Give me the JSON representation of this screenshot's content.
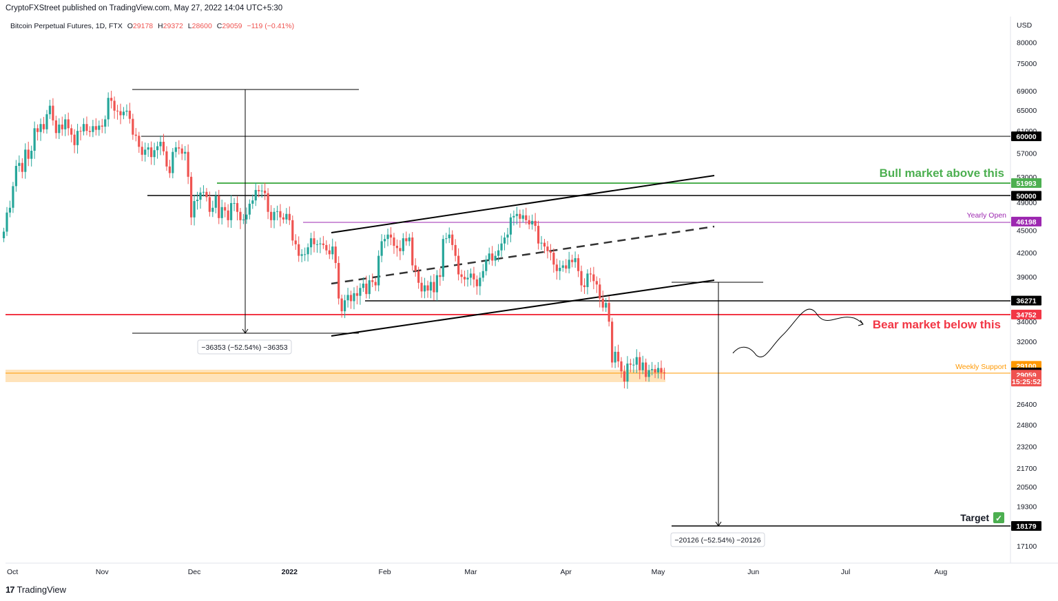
{
  "header": {
    "published_by": "CryptoFXStreet published on TradingView.com, May 27, 2022 14:04 UTC+5:30",
    "symbol_line": "Bitcoin Perpetual Futures, 1D, FTX",
    "ohlc": {
      "o_label": "O",
      "o": "29178",
      "h_label": "H",
      "h": "29372",
      "l_label": "L",
      "l": "28600",
      "c_label": "C",
      "c": "29059",
      "change": "−119 (−0.41%)"
    }
  },
  "footer": {
    "brand": "TradingView",
    "logo_text": "17"
  },
  "colors": {
    "up": "#26a69a",
    "down": "#ef5350",
    "bull_line": "#4caf50",
    "bear_line": "#f23645",
    "yearly_open": "#9c27b0",
    "weekly_support": "#ff9800",
    "support_band": "#ffe0b2",
    "black": "#000000"
  },
  "chart_data": {
    "type": "candlestick",
    "title": "Bitcoin Perpetual Futures, 1D, FTX",
    "y_axis": {
      "unit": "USD",
      "scale": "log",
      "ticks": [
        80000,
        75000,
        69000,
        65000,
        61000,
        57000,
        53000,
        49000,
        45000,
        42000,
        39000,
        34000,
        32000,
        26400,
        24800,
        23200,
        21700,
        20500,
        19300,
        17100
      ]
    },
    "x_axis": {
      "tick_labels": [
        "Oct",
        "Nov",
        "Dec",
        "2022",
        "Feb",
        "Mar",
        "Apr",
        "May",
        "Jun",
        "Jul",
        "Aug"
      ]
    },
    "closes": [
      44800,
      47500,
      48200,
      51500,
      54800,
      55300,
      53800,
      57600,
      56000,
      57400,
      61500,
      60800,
      62300,
      61300,
      64200,
      65900,
      63000,
      60600,
      62200,
      61300,
      63200,
      61500,
      60300,
      58400,
      61000,
      60900,
      62300,
      61000,
      60800,
      61900,
      61200,
      62000,
      61800,
      63200,
      67500,
      66900,
      64900,
      64800,
      64000,
      64700,
      64900,
      63300,
      60300,
      60100,
      58100,
      56700,
      57600,
      58000,
      56300,
      57500,
      58200,
      59000,
      57300,
      54700,
      53600,
      57200,
      58000,
      57800,
      56900,
      57200,
      53000,
      46800,
      49200,
      49400,
      50500,
      50600,
      49800,
      47600,
      48200,
      50000,
      46700,
      48300,
      47800,
      46400,
      48900,
      48900,
      47600,
      46400,
      46500,
      47200,
      48800,
      49300,
      50900,
      50700,
      50800,
      50400,
      47600,
      46400,
      47600,
      47700,
      46800,
      46500,
      47300,
      46400,
      43600,
      43100,
      41600,
      41800,
      41800,
      42700,
      43900,
      43100,
      43100,
      43200,
      43000,
      42300,
      41800,
      42800,
      40700,
      36500,
      35100,
      36300,
      36900,
      36200,
      37100,
      36800,
      37700,
      38200,
      37000,
      38600,
      38400,
      38000,
      41600,
      43500,
      43800,
      44400,
      44000,
      42900,
      42600,
      42200,
      43900,
      43500,
      44000,
      40400,
      39700,
      38300,
      37300,
      38000,
      37400,
      38400,
      37200,
      39200,
      39000,
      43800,
      43900,
      44400,
      43000,
      41600,
      39300,
      39000,
      38700,
      38900,
      39400,
      38700,
      37900,
      38900,
      39700,
      41100,
      41900,
      41000,
      41600,
      42300,
      43200,
      44000,
      44400,
      46800,
      47000,
      47300,
      46600,
      47100,
      46400,
      45800,
      46300,
      45600,
      43200,
      43300,
      42800,
      42200,
      42000,
      40500,
      39700,
      40100,
      40400,
      40000,
      41100,
      40800,
      41300,
      39700,
      38000,
      37800,
      39400,
      39300,
      38500,
      38100,
      36500,
      35500,
      36000,
      34000,
      30000,
      31000,
      30100,
      29200,
      28300,
      29900,
      29800,
      29800,
      30500,
      29300,
      30000,
      28700,
      29300,
      29400,
      29100,
      29500,
      29100,
      29059
    ],
    "series_start_date": "2021-09-30",
    "annotations": {
      "price_labels": [
        {
          "text": "60000",
          "price": 60000,
          "bg": "#000000"
        },
        {
          "text": "51993",
          "price": 51993,
          "bg": "#4caf50"
        },
        {
          "text": "50000",
          "price": 50000,
          "bg": "#000000"
        },
        {
          "text": "46198",
          "price": 46198,
          "bg": "#9c27b0"
        },
        {
          "text": "36271",
          "price": 36271,
          "bg": "#000000"
        },
        {
          "text": "34752",
          "price": 34752,
          "bg": "#f23645"
        },
        {
          "text": "29100",
          "price": 29700,
          "bg": "#ff9800"
        },
        {
          "text": "29100",
          "price": 29100,
          "bg": "#000000"
        },
        {
          "text": "29059",
          "price": 28900,
          "bg": "#ef5350"
        },
        {
          "text": "15:25:52",
          "price": 28300,
          "bg": "#ef5350"
        },
        {
          "text": "18179",
          "price": 18179,
          "bg": "#000000"
        }
      ],
      "bull_text": "Bull market above this",
      "bear_text": "Bear market below this",
      "yearly_open": "Yearly Open",
      "weekly_support": "Weekly Support",
      "target": "Target",
      "target_check": "✓",
      "measure1": "−36353 (−52.54%) −36353",
      "measure2": "−20126 (−52.54%) −20126"
    }
  }
}
